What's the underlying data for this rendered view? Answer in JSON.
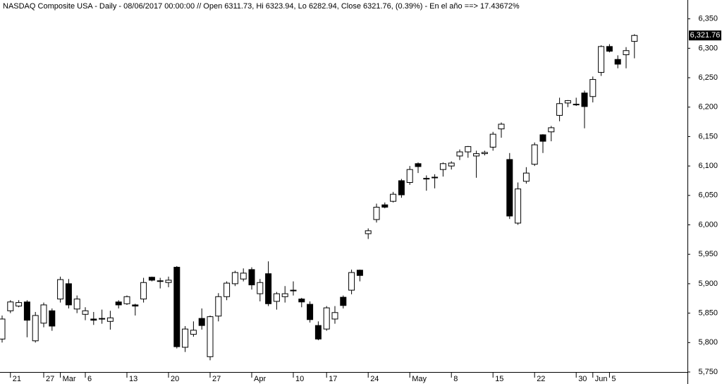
{
  "chart_data": {
    "type": "candlestick",
    "title": "NASDAQ Composite USA - Daily - 08/06/2017 00:00:00 // Open 6311.73, Hi 6323.94, Lo 6282.94, Close 6321.76, (0.39%) - En el año ==> 17.43672%",
    "categories": [
      null,
      "21",
      null,
      null,
      null,
      "27",
      null,
      "Mar",
      null,
      null,
      "6",
      null,
      null,
      null,
      null,
      "13",
      null,
      null,
      null,
      null,
      "20",
      null,
      null,
      null,
      null,
      "27",
      null,
      null,
      null,
      null,
      "Apr",
      null,
      null,
      null,
      null,
      "10",
      null,
      null,
      null,
      "17",
      null,
      null,
      null,
      null,
      "24",
      null,
      null,
      null,
      null,
      "May",
      null,
      null,
      null,
      null,
      "8",
      null,
      null,
      null,
      null,
      "15",
      null,
      null,
      null,
      null,
      "22",
      null,
      null,
      null,
      null,
      "30",
      null,
      "Jun",
      null,
      "5",
      null,
      null,
      null
    ],
    "open": [
      5806,
      5854,
      5862,
      5869,
      5803,
      5833,
      5854,
      5874,
      5900,
      5857,
      5848,
      5840,
      5840,
      5836,
      5869,
      5866,
      5864,
      5874,
      5911,
      5904,
      5902,
      5928,
      5792,
      5814,
      5841,
      5776,
      5845,
      5878,
      5900,
      5908,
      5924,
      5883,
      5917,
      5870,
      5878,
      5888,
      5874,
      5865,
      5829,
      5823,
      5840,
      5877,
      5889,
      5923,
      5985,
      6009,
      6034,
      6040,
      6075,
      6072,
      6104,
      6079,
      6080,
      6094,
      6100,
      6117,
      6124,
      6117,
      6121,
      6132,
      6163,
      6111,
      6003,
      6074,
      6103,
      6153,
      6158,
      6186,
      6207,
      6205,
      6224,
      6218,
      6259,
      6303,
      6281,
      6289,
      6311.73
    ],
    "high": [
      5846,
      5872,
      5872,
      5872,
      5852,
      5868,
      5858,
      5912,
      5908,
      5880,
      5860,
      5852,
      5856,
      5854,
      5872,
      5880,
      5866,
      5910,
      5912,
      5910,
      5912,
      5930,
      5828,
      5836,
      5858,
      5846,
      5884,
      5904,
      5922,
      5926,
      5928,
      5908,
      5938,
      5886,
      5896,
      5904,
      5876,
      5870,
      5836,
      5862,
      5862,
      5880,
      5924,
      5924,
      5994,
      6036,
      6038,
      6056,
      6078,
      6100,
      6106,
      6084,
      6086,
      6106,
      6108,
      6128,
      6134,
      6126,
      6126,
      6158,
      6174,
      6122,
      6072,
      6098,
      6140,
      6154,
      6168,
      6216,
      6212,
      6216,
      6228,
      6252,
      6305,
      6307,
      6288,
      6302,
      6323.94
    ],
    "low": [
      5800,
      5850,
      5860,
      5809,
      5800,
      5826,
      5820,
      5868,
      5858,
      5850,
      5838,
      5830,
      5832,
      5822,
      5858,
      5864,
      5846,
      5868,
      5904,
      5892,
      5894,
      5790,
      5784,
      5810,
      5822,
      5770,
      5836,
      5872,
      5896,
      5904,
      5890,
      5870,
      5862,
      5856,
      5868,
      5880,
      5860,
      5834,
      5804,
      5820,
      5832,
      5858,
      5882,
      5904,
      5976,
      6004,
      6028,
      6038,
      6046,
      6068,
      6088,
      6058,
      6062,
      6082,
      6094,
      6110,
      6114,
      6080,
      6118,
      6126,
      6148,
      6010,
      6000,
      6070,
      6100,
      6122,
      6142,
      6176,
      6200,
      6202,
      6164,
      6208,
      6253,
      6293,
      6266,
      6266,
      6282.94
    ],
    "close": [
      5840,
      5869,
      5868,
      5838,
      5846,
      5864,
      5828,
      5907,
      5864,
      5874,
      5854,
      5838,
      5841,
      5842,
      5864,
      5878,
      5862,
      5902,
      5906,
      5905,
      5906,
      5793,
      5823,
      5821,
      5829,
      5844,
      5878,
      5901,
      5919,
      5918,
      5898,
      5902,
      5866,
      5883,
      5883,
      5889,
      5869,
      5839,
      5806,
      5859,
      5851,
      5863,
      5919,
      5914,
      5990,
      6030,
      6030,
      6052,
      6051,
      6094,
      6099,
      6078,
      6081,
      6104,
      6105,
      6124,
      6133,
      6121,
      6123,
      6154,
      6171,
      6015,
      6061,
      6088,
      6136,
      6142,
      6165,
      6206,
      6211,
      6204,
      6201,
      6247,
      6303,
      6295,
      6273,
      6296,
      6321.76
    ],
    "ylim": [
      5750,
      6382
    ],
    "yticks": [
      {
        "value": 5750,
        "label": "5,750"
      },
      {
        "value": 5800,
        "label": "5,800"
      },
      {
        "value": 5850,
        "label": "5,850"
      },
      {
        "value": 5900,
        "label": "5,900"
      },
      {
        "value": 5950,
        "label": "5,950"
      },
      {
        "value": 6000,
        "label": "6,000"
      },
      {
        "value": 6050,
        "label": "6,050"
      },
      {
        "value": 6100,
        "label": "6,100"
      },
      {
        "value": 6150,
        "label": "6,150"
      },
      {
        "value": 6200,
        "label": "6,200"
      },
      {
        "value": 6250,
        "label": "6,250"
      },
      {
        "value": 6300,
        "label": "6,300"
      },
      {
        "value": 6350,
        "label": "6,350"
      }
    ],
    "last_price": {
      "value": 6321.76,
      "label": "6,321.76"
    },
    "up_color": "#ffffff",
    "down_color": "#000000",
    "grid": false
  }
}
